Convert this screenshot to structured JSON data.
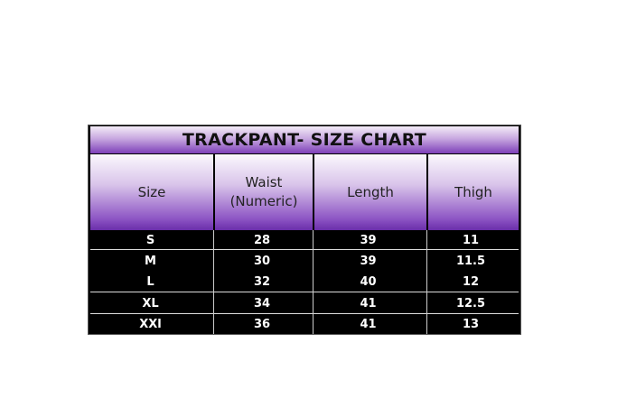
{
  "title": "TRACKPANT- SIZE CHART",
  "headers": [
    "Size",
    "Waist (Numeric)",
    "Length",
    "Thigh"
  ],
  "rows": [
    [
      "S",
      "28",
      "39",
      "11"
    ],
    [
      "M",
      "30",
      "39",
      "11.5"
    ],
    [
      "L",
      "32",
      "40",
      "12"
    ],
    [
      "XL",
      "34",
      "41",
      "12.5"
    ],
    [
      "XXl",
      "36",
      "41",
      "13"
    ]
  ],
  "colors": {
    "header_purple": "#7d3fb8",
    "body_bg": "#000000",
    "body_text": "#ffffff"
  }
}
